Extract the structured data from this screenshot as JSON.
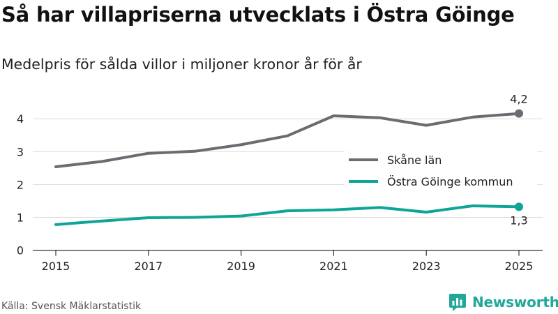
{
  "title": "Så har villapriserna utvecklats i Östra Göinge",
  "subtitle": "Medelpris för sålda villor i miljoner kronor år för år",
  "source": "Källa: Svensk Mäklarstatistik",
  "brand": {
    "name": "Newsworthy",
    "icon": "newsworthy-logo-icon",
    "color": "#21a89a"
  },
  "chart_data": {
    "type": "line",
    "x": [
      2015,
      2016,
      2017,
      2018,
      2019,
      2020,
      2021,
      2022,
      2023,
      2024,
      2025
    ],
    "x_tick_labels": [
      "2015",
      "2017",
      "2019",
      "2021",
      "2023",
      "2025"
    ],
    "y_tick_labels": [
      "0",
      "1",
      "2",
      "3",
      "4"
    ],
    "ylim": [
      0,
      4.5
    ],
    "grid": "horizontal",
    "legend_position": "right-middle",
    "series": [
      {
        "name": "Skåne län",
        "color": "#6d6b72",
        "values": [
          2.54,
          2.7,
          2.95,
          3.01,
          3.21,
          3.48,
          4.09,
          4.03,
          3.8,
          4.05,
          4.16
        ],
        "end_label": "4,2"
      },
      {
        "name": "Östra Göinge kommun",
        "color": "#0fa596",
        "values": [
          0.78,
          0.89,
          0.99,
          1.0,
          1.04,
          1.2,
          1.23,
          1.3,
          1.16,
          1.35,
          1.32
        ],
        "end_label": "1,3"
      }
    ]
  }
}
